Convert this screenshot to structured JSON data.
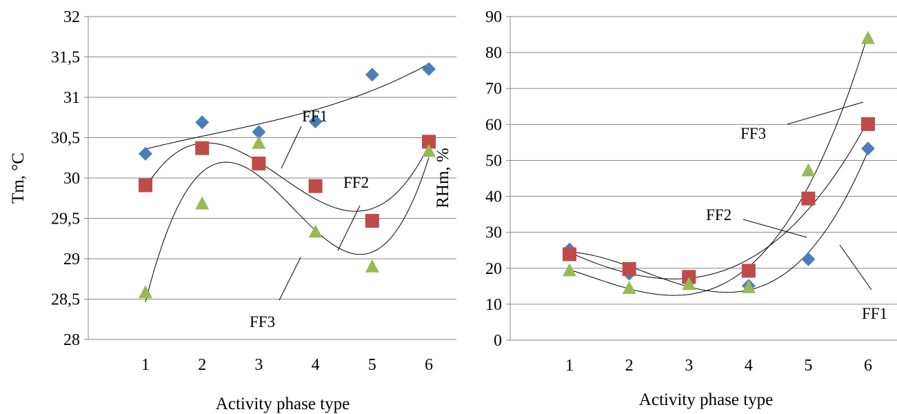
{
  "chart_data": [
    {
      "type": "scatter",
      "xlabel": "Activity phase type",
      "ylabel": "Tm, °C",
      "x": [
        1,
        2,
        3,
        4,
        5,
        6
      ],
      "x_ticks": [
        "1",
        "2",
        "3",
        "4",
        "5",
        "6"
      ],
      "ylim": [
        28,
        32
      ],
      "y_ticks": [
        "28",
        "28,5",
        "29",
        "29,5",
        "30",
        "30,5",
        "31",
        "31,5",
        "32"
      ],
      "grid": true,
      "trendlines": "polynomial",
      "series": [
        {
          "values": [
            30.3,
            30.69,
            30.57,
            30.7,
            31.28,
            31.35
          ],
          "marker": "diamond",
          "color": "#4a7ebb"
        },
        {
          "values": [
            29.91,
            30.37,
            30.18,
            29.9,
            29.47,
            30.45
          ],
          "marker": "square",
          "color": "#be4b48"
        },
        {
          "values": [
            28.58,
            29.68,
            30.43,
            29.33,
            28.9,
            30.33
          ],
          "marker": "triangle",
          "color": "#98b954"
        }
      ],
      "annotations": [
        "FF1",
        "FF2",
        "FF3"
      ]
    },
    {
      "type": "scatter",
      "xlabel": "Activity phase type",
      "ylabel": "RHm, %",
      "x": [
        1,
        2,
        3,
        4,
        5,
        6
      ],
      "x_ticks": [
        "1",
        "2",
        "3",
        "4",
        "5",
        "6"
      ],
      "ylim": [
        0,
        90
      ],
      "y_ticks": [
        "0",
        "10",
        "20",
        "30",
        "40",
        "50",
        "60",
        "70",
        "80",
        "90"
      ],
      "grid": true,
      "trendlines": "polynomial",
      "series": [
        {
          "values": [
            25.2,
            18.5,
            16.3,
            15.1,
            22.5,
            53.3
          ],
          "marker": "diamond",
          "color": "#4a7ebb"
        },
        {
          "values": [
            23.9,
            19.8,
            17.6,
            19.3,
            39.4,
            60.1
          ],
          "marker": "square",
          "color": "#be4b48"
        },
        {
          "values": [
            19.3,
            14.4,
            15.5,
            14.6,
            47.1,
            83.9
          ],
          "marker": "triangle",
          "color": "#98b954"
        }
      ],
      "annotations": [
        "FF3",
        "FF2",
        "FF1"
      ]
    }
  ]
}
